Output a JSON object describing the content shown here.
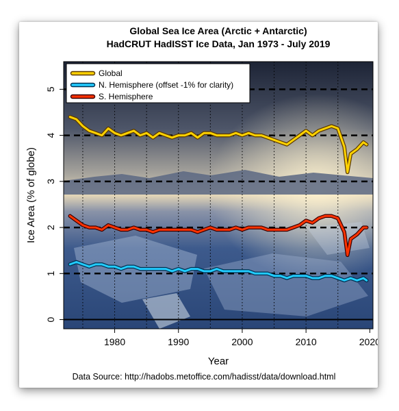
{
  "chart_data": {
    "type": "line",
    "title": "Global Sea Ice Area (Arctic + Antarctic)",
    "subtitle": "HadCRUT HadISST Ice Data, Jan 1973 - July 2019",
    "xlabel": "Year",
    "ylabel": "Ice Area (% of globe)",
    "source": "Data Source: http://hadobs.metoffice.com/hadisst/data/download.html",
    "xlim": [
      1972,
      2020.5
    ],
    "ylim": [
      -0.2,
      5.6
    ],
    "x_ticks": [
      {
        "value": 1980,
        "label": "1980"
      },
      {
        "value": 1990,
        "label": "1990"
      },
      {
        "value": 2000,
        "label": "2000"
      },
      {
        "value": 2010,
        "label": "2010"
      },
      {
        "value": 2020,
        "label": "2020"
      }
    ],
    "y_ticks": [
      {
        "value": 0,
        "label": "0"
      },
      {
        "value": 1,
        "label": "1"
      },
      {
        "value": 2,
        "label": "2"
      },
      {
        "value": 3,
        "label": "3"
      },
      {
        "value": 4,
        "label": "4"
      },
      {
        "value": 5,
        "label": "5"
      }
    ],
    "h_dashed_gridlines": [
      1,
      2,
      3,
      4,
      5
    ],
    "v_dotted_gridlines": [
      1975,
      1980,
      1985,
      1990,
      1995,
      2000,
      2005,
      2010,
      2015
    ],
    "zero_line": 0,
    "legend_position": "top-left",
    "background": "photo of Antarctic sea ice under dusk sky",
    "series": [
      {
        "name": "Global",
        "color": "#ffd200",
        "outline": "#5a3a00",
        "x": [
          1973,
          1974,
          1975,
          1976,
          1977,
          1978,
          1979,
          1980,
          1981,
          1982,
          1983,
          1984,
          1985,
          1986,
          1987,
          1988,
          1989,
          1990,
          1991,
          1992,
          1993,
          1994,
          1995,
          1996,
          1997,
          1998,
          1999,
          2000,
          2001,
          2002,
          2003,
          2004,
          2005,
          2006,
          2007,
          2008,
          2009,
          2010,
          2011,
          2012,
          2013,
          2014,
          2015,
          2016,
          2016.5,
          2017,
          2018,
          2019,
          2019.5
        ],
        "values": [
          4.4,
          4.35,
          4.2,
          4.1,
          4.05,
          4.0,
          4.15,
          4.05,
          4.0,
          4.05,
          4.1,
          4.0,
          4.05,
          3.95,
          4.05,
          4.0,
          3.95,
          4.0,
          4.0,
          4.05,
          3.95,
          4.05,
          4.05,
          4.0,
          4.0,
          4.0,
          4.05,
          4.0,
          4.05,
          4.0,
          4.0,
          3.95,
          3.9,
          3.85,
          3.8,
          3.9,
          4.0,
          4.1,
          4.0,
          4.1,
          4.15,
          4.2,
          4.15,
          3.75,
          3.2,
          3.6,
          3.7,
          3.85,
          3.8
        ]
      },
      {
        "name": "N. Hemisphere (offset -1% for clarity)",
        "color": "#22ccff",
        "outline": "#003050",
        "x": [
          1973,
          1974,
          1975,
          1976,
          1977,
          1978,
          1979,
          1980,
          1981,
          1982,
          1983,
          1984,
          1985,
          1986,
          1987,
          1988,
          1989,
          1990,
          1991,
          1992,
          1993,
          1994,
          1995,
          1996,
          1997,
          1998,
          1999,
          2000,
          2001,
          2002,
          2003,
          2004,
          2005,
          2006,
          2007,
          2008,
          2009,
          2010,
          2011,
          2012,
          2013,
          2014,
          2015,
          2016,
          2017,
          2018,
          2019,
          2019.5
        ],
        "values": [
          1.2,
          1.25,
          1.2,
          1.15,
          1.2,
          1.2,
          1.15,
          1.15,
          1.1,
          1.15,
          1.15,
          1.1,
          1.1,
          1.1,
          1.1,
          1.1,
          1.05,
          1.1,
          1.05,
          1.1,
          1.1,
          1.05,
          1.05,
          1.1,
          1.05,
          1.05,
          1.05,
          1.05,
          1.05,
          1.0,
          1.0,
          1.0,
          0.95,
          0.95,
          0.9,
          0.95,
          0.95,
          0.95,
          0.9,
          0.9,
          0.95,
          0.95,
          0.9,
          0.85,
          0.9,
          0.85,
          0.9,
          0.85
        ]
      },
      {
        "name": "S. Hemisphere",
        "color": "#ff3300",
        "outline": "#3a0000",
        "x": [
          1973,
          1974,
          1975,
          1976,
          1977,
          1978,
          1979,
          1980,
          1981,
          1982,
          1983,
          1984,
          1985,
          1986,
          1987,
          1988,
          1989,
          1990,
          1991,
          1992,
          1993,
          1994,
          1995,
          1996,
          1997,
          1998,
          1999,
          2000,
          2001,
          2002,
          2003,
          2004,
          2005,
          2006,
          2007,
          2008,
          2009,
          2010,
          2011,
          2012,
          2013,
          2014,
          2015,
          2016,
          2016.5,
          2017,
          2018,
          2019,
          2019.5
        ],
        "values": [
          2.25,
          2.15,
          2.05,
          2.0,
          2.0,
          1.95,
          2.05,
          2.0,
          1.95,
          1.95,
          2.0,
          1.95,
          1.95,
          1.9,
          1.95,
          1.95,
          1.95,
          1.95,
          1.95,
          1.95,
          1.9,
          1.95,
          2.0,
          1.95,
          1.95,
          1.95,
          2.0,
          1.95,
          2.0,
          2.0,
          2.0,
          1.95,
          1.95,
          1.95,
          1.95,
          2.0,
          2.05,
          2.15,
          2.1,
          2.2,
          2.25,
          2.25,
          2.2,
          1.9,
          1.4,
          1.75,
          1.85,
          2.0,
          2.0
        ]
      }
    ]
  }
}
